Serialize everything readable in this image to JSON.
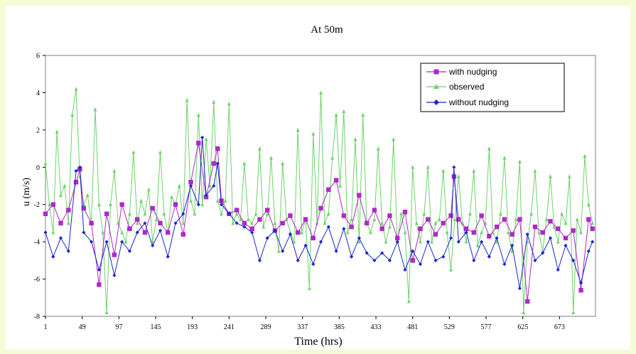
{
  "chart_data": {
    "type": "line",
    "title": "At 50m",
    "xlabel": "Time (hrs)",
    "ylabel": "u (m/s)",
    "xlim": [
      1,
      720
    ],
    "ylim": [
      -8,
      6
    ],
    "xticks": [
      1,
      49,
      97,
      145,
      193,
      241,
      289,
      337,
      385,
      433,
      481,
      529,
      577,
      625,
      673
    ],
    "yticks": [
      -8,
      -6,
      -4,
      -2,
      0,
      2,
      4,
      6
    ],
    "grid": false,
    "legend_position": "top-right",
    "colors": {
      "with_nudging": "#b028c8",
      "observed": "#6ed26a",
      "without_nudging": "#1a28c8",
      "axis": "#808080"
    },
    "legend_labels": [
      "with nudging",
      "observed",
      "without nudging"
    ],
    "series": [
      {
        "name": "with nudging",
        "x": [
          1,
          11,
          21,
          31,
          41,
          46,
          51,
          61,
          71,
          81,
          91,
          101,
          111,
          121,
          131,
          141,
          151,
          161,
          171,
          181,
          191,
          201,
          211,
          221,
          226,
          231,
          241,
          251,
          261,
          271,
          281,
          291,
          301,
          311,
          321,
          331,
          341,
          351,
          361,
          371,
          381,
          391,
          401,
          411,
          421,
          431,
          441,
          451,
          461,
          471,
          481,
          491,
          501,
          511,
          521,
          531,
          535,
          541,
          551,
          561,
          571,
          581,
          591,
          601,
          611,
          621,
          631,
          641,
          651,
          661,
          671,
          681,
          691,
          701,
          711,
          716
        ],
        "y": [
          -2.5,
          -2.0,
          -3.0,
          -2.3,
          -0.8,
          -0.1,
          -2.2,
          -3.0,
          -6.3,
          -2.5,
          -4.7,
          -2.0,
          -3.3,
          -2.8,
          -3.5,
          -2.2,
          -3.0,
          -3.5,
          -2.0,
          -3.6,
          -0.8,
          1.3,
          -1.6,
          0.2,
          1.0,
          -1.8,
          -2.5,
          -2.3,
          -3.0,
          -3.3,
          -2.8,
          -2.3,
          -3.4,
          -3.0,
          -2.6,
          -3.5,
          -2.8,
          -3.8,
          -2.2,
          -1.2,
          -0.7,
          -2.6,
          -3.2,
          -1.5,
          -3.0,
          -2.3,
          -3.3,
          -2.6,
          -3.8,
          -2.4,
          -5.0,
          -3.3,
          -2.8,
          -3.6,
          -3.0,
          -2.6,
          -0.5,
          -2.8,
          -3.3,
          -3.5,
          -2.6,
          -3.7,
          -3.2,
          -2.8,
          -3.6,
          -2.8,
          -7.2,
          -3.2,
          -3.5,
          -2.9,
          -3.3,
          -3.8,
          -3.4,
          -6.6,
          -2.8,
          -3.3
        ]
      },
      {
        "name": "observed",
        "x": [
          1,
          6,
          11,
          16,
          21,
          26,
          31,
          36,
          41,
          46,
          51,
          56,
          61,
          66,
          71,
          76,
          81,
          86,
          91,
          96,
          101,
          106,
          111,
          116,
          121,
          126,
          131,
          136,
          141,
          146,
          151,
          156,
          161,
          166,
          171,
          176,
          181,
          186,
          191,
          196,
          201,
          206,
          211,
          216,
          221,
          226,
          231,
          236,
          241,
          246,
          251,
          256,
          261,
          266,
          271,
          276,
          281,
          286,
          291,
          296,
          301,
          306,
          311,
          316,
          321,
          326,
          331,
          336,
          341,
          346,
          351,
          356,
          361,
          366,
          371,
          376,
          381,
          386,
          391,
          396,
          401,
          406,
          411,
          416,
          421,
          426,
          431,
          436,
          441,
          446,
          451,
          456,
          461,
          466,
          471,
          476,
          481,
          486,
          491,
          496,
          501,
          506,
          511,
          516,
          521,
          526,
          531,
          536,
          541,
          546,
          551,
          556,
          561,
          566,
          571,
          576,
          581,
          586,
          591,
          596,
          601,
          606,
          611,
          616,
          621,
          626,
          631,
          636,
          641,
          646,
          651,
          656,
          661,
          666,
          671,
          676,
          681,
          686,
          691,
          696,
          701,
          706,
          711,
          716
        ],
        "y": [
          0.2,
          -2.0,
          -3.5,
          1.9,
          -1.5,
          -1.0,
          -3.0,
          2.8,
          4.2,
          -0.5,
          -2.0,
          -1.5,
          -3.0,
          3.1,
          -2.0,
          -3.5,
          -7.8,
          -2.0,
          -0.2,
          -3.0,
          -3.5,
          -4.0,
          -2.5,
          0.8,
          -3.0,
          -1.8,
          -2.5,
          -1.2,
          -4.0,
          -2.8,
          0.8,
          -2.5,
          -3.5,
          -1.6,
          -2.0,
          -1.0,
          -3.0,
          3.6,
          -1.8,
          -2.5,
          2.8,
          -2.0,
          1.5,
          -1.0,
          3.5,
          -1.8,
          -2.5,
          -1.8,
          3.4,
          -3.0,
          -2.5,
          -2.8,
          0.2,
          -2.8,
          -3.0,
          -2.5,
          1.0,
          -3.2,
          -2.5,
          0.5,
          -3.0,
          -4.5,
          0.2,
          -2.8,
          -3.5,
          -4.0,
          2.0,
          -3.5,
          -2.8,
          -6.5,
          1.8,
          -3.0,
          4.0,
          -3.0,
          -2.5,
          0.5,
          2.8,
          -1.0,
          3.0,
          -3.5,
          -2.8,
          1.5,
          -4.0,
          2.8,
          -3.0,
          -3.5,
          -2.8,
          1.0,
          -3.0,
          -4.0,
          -3.2,
          1.5,
          -4.0,
          -2.5,
          -3.5,
          -7.2,
          0.0,
          -3.0,
          -4.0,
          -2.5,
          0.0,
          -4.0,
          -3.0,
          -2.8,
          -0.2,
          -3.5,
          -5.5,
          -2.8,
          -0.5,
          -3.0,
          -4.0,
          -2.5,
          -0.2,
          -4.2,
          -3.5,
          -3.0,
          1.0,
          -3.5,
          -4.0,
          -2.5,
          0.5,
          -3.5,
          -4.5,
          -2.8,
          0.3,
          -7.8,
          -4.0,
          -2.5,
          -0.2,
          -3.5,
          -4.5,
          -2.8,
          -0.5,
          -3.2,
          -4.0,
          -2.5,
          -3.0,
          -0.5,
          -7.8,
          -2.8,
          -3.5,
          0.6,
          -2.0,
          -3.0
        ]
      },
      {
        "name": "without nudging",
        "x": [
          1,
          11,
          21,
          31,
          41,
          46,
          51,
          61,
          71,
          81,
          91,
          101,
          111,
          121,
          131,
          141,
          151,
          161,
          171,
          181,
          191,
          201,
          206,
          211,
          221,
          226,
          231,
          241,
          251,
          261,
          271,
          281,
          291,
          301,
          311,
          321,
          331,
          341,
          351,
          361,
          371,
          381,
          391,
          401,
          411,
          421,
          431,
          441,
          451,
          461,
          471,
          481,
          491,
          501,
          511,
          521,
          531,
          535,
          541,
          551,
          561,
          571,
          581,
          591,
          601,
          611,
          621,
          631,
          641,
          651,
          661,
          671,
          681,
          691,
          701,
          711,
          716
        ],
        "y": [
          -3.5,
          -4.8,
          -3.8,
          -4.5,
          -0.2,
          0.0,
          -3.5,
          -4.0,
          -5.5,
          -4.0,
          -5.8,
          -4.0,
          -4.5,
          -3.5,
          -3.0,
          -4.2,
          -3.4,
          -4.8,
          -3.0,
          -2.5,
          -1.0,
          -2.0,
          1.6,
          -1.5,
          -1.0,
          0.2,
          -2.0,
          -2.5,
          -3.0,
          -3.2,
          -3.5,
          -5.0,
          -3.8,
          -3.4,
          -4.5,
          -3.6,
          -5.0,
          -4.2,
          -5.2,
          -4.0,
          -3.2,
          -4.5,
          -3.3,
          -4.8,
          -3.8,
          -4.6,
          -5.0,
          -4.6,
          -5.0,
          -4.0,
          -5.5,
          -4.5,
          -5.2,
          -4.0,
          -5.0,
          -4.8,
          -3.8,
          0.0,
          -4.0,
          -3.5,
          -5.0,
          -4.0,
          -4.8,
          -3.8,
          -5.2,
          -4.2,
          -6.5,
          -3.6,
          -5.0,
          -4.6,
          -3.8,
          -5.5,
          -4.2,
          -5.0,
          -6.2,
          -4.5,
          -4.0
        ]
      }
    ]
  }
}
